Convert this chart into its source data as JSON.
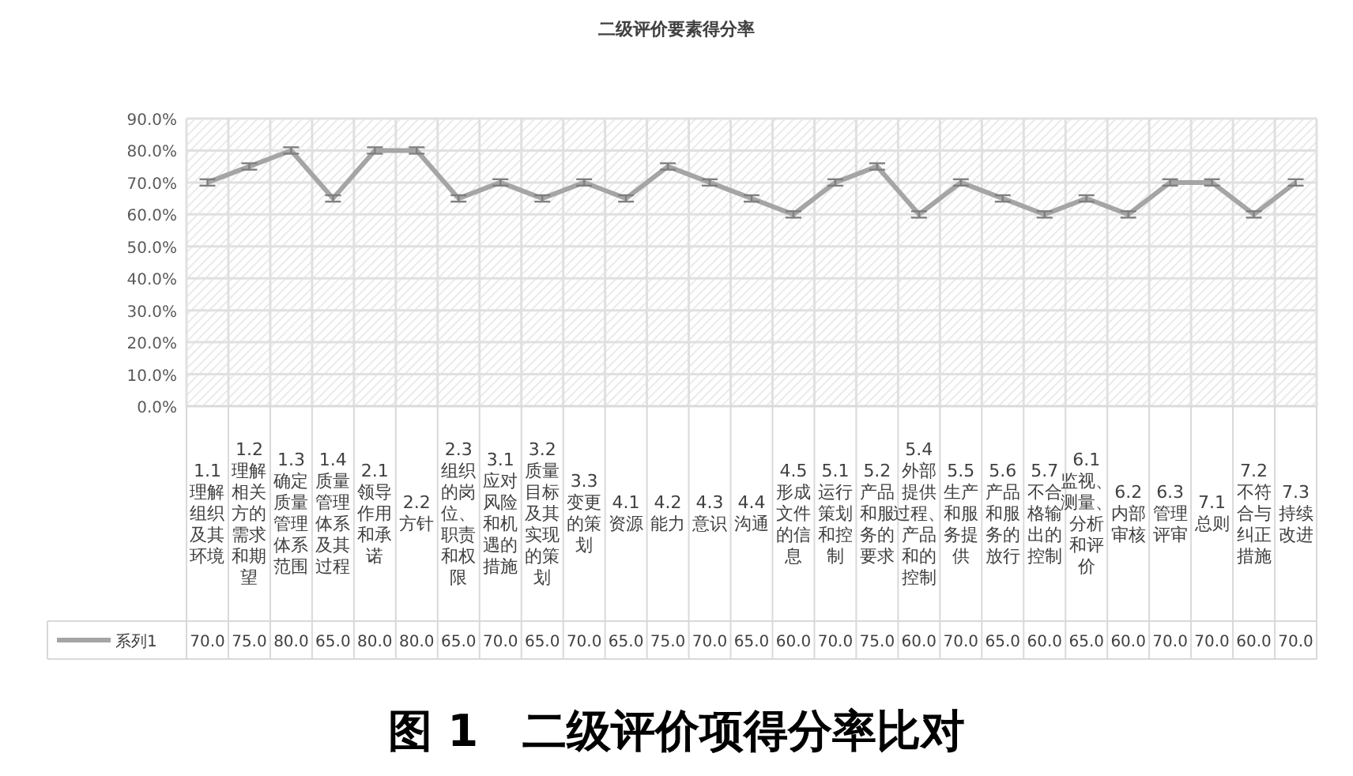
{
  "chart_data": {
    "type": "line",
    "title": "二级评价要素得分率",
    "categories": [
      "1.1 理解组织及其环境",
      "1.2 理解相关方的需求和期望",
      "1.3 确定质量管理体系范围",
      "1.4 质量管理体系及其过程",
      "2.1 领导作用和承诺",
      "2.2 方针",
      "2.3 组织的岗位、职责和权限",
      "3.1 应对风险和机遇的措施",
      "3.2 质量目标及其实现的策划",
      "3.3 变更的策划",
      "4.1 资源",
      "4.2 能力",
      "4.3 意识",
      "4.4 沟通",
      "4.5 形成文件的信息",
      "5.1 运行策划和控制",
      "5.2 产品和服务的要求",
      "5.4 外部提供过程、产品和的控制",
      "5.5 生产和服务提供",
      "5.6 产品和服务的放行",
      "5.7 不合格输出的控制",
      "6.1 监视、测量、分析和评价",
      "6.2 内部审核",
      "6.3 管理评审",
      "7.1 总则",
      "7.2 不符合与纠正措施",
      "7.3 持续改进"
    ],
    "series": [
      {
        "name": "系列1",
        "color": "#a5a5a5",
        "values": [
          70,
          75,
          80,
          65,
          80,
          80,
          65,
          70,
          65,
          70,
          65,
          75,
          70,
          65,
          60,
          70,
          75,
          60,
          70,
          65,
          60,
          65,
          60,
          70,
          70,
          60,
          70
        ],
        "errors": [
          1,
          1,
          1,
          1,
          1,
          1,
          1,
          1,
          1,
          1,
          1,
          1,
          1,
          1,
          1,
          1,
          1,
          1,
          1,
          1,
          1,
          1,
          1,
          1,
          1,
          1,
          1
        ],
        "value_labels": [
          "70.0",
          "75.0",
          "80.0",
          "65.0",
          "80.0",
          "80.0",
          "65.0",
          "70.0",
          "65.0",
          "70.0",
          "65.0",
          "75.0",
          "70.0",
          "65.0",
          "60.0",
          "70.0",
          "75.0",
          "60.0",
          "70.0",
          "65.0",
          "60.0",
          "65.0",
          "60.0",
          "70.0",
          "70.0",
          "60.0",
          "70.0"
        ]
      }
    ],
    "ylim": [
      0,
      90
    ],
    "yticks": [
      {
        "value": 0,
        "label": "0.0%"
      },
      {
        "value": 10,
        "label": "10.0%"
      },
      {
        "value": 20,
        "label": "20.0%"
      },
      {
        "value": 30,
        "label": "30.0%"
      },
      {
        "value": 40,
        "label": "40.0%"
      },
      {
        "value": 50,
        "label": "50.0%"
      },
      {
        "value": 60,
        "label": "60.0%"
      },
      {
        "value": 70,
        "label": "70.0%"
      },
      {
        "value": 80,
        "label": "80.0%"
      },
      {
        "value": 90,
        "label": "90.0%"
      }
    ],
    "grid": true,
    "legend": "bottom left",
    "marker": "none",
    "line_style": "solid",
    "annotations": [
      "图 1　二级评价项得分率比对"
    ]
  }
}
